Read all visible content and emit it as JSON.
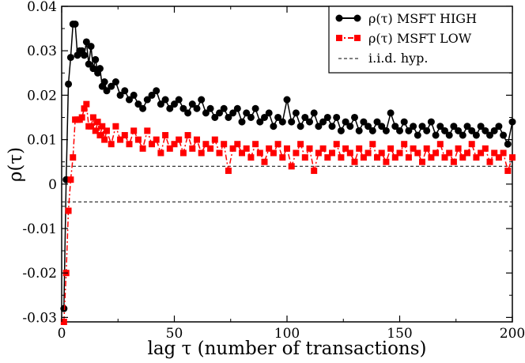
{
  "chart_data": {
    "type": "line",
    "xlabel": "lag τ (number of transactions)",
    "ylabel": "ρ(τ)",
    "xlim": [
      0,
      200
    ],
    "ylim": [
      -0.031,
      0.04
    ],
    "xticks": [
      0,
      50,
      100,
      150,
      200
    ],
    "xtick_labels": [
      "0",
      "50",
      "100",
      "150",
      "200"
    ],
    "yticks": [
      -0.03,
      -0.02,
      -0.01,
      0,
      0.01,
      0.02,
      0.03,
      0.04
    ],
    "ytick_labels": [
      "-0.03",
      "-0.02",
      "-0.01",
      "0",
      "0.01",
      "0.02",
      "0.03",
      "0.04"
    ],
    "legend_position": "top-right",
    "iid_band": [
      -0.004,
      0.004
    ],
    "series": [
      {
        "name": "ρ(τ) MSFT HIGH",
        "color": "#000000",
        "marker": "circle",
        "x": [
          1,
          2,
          3,
          4,
          5,
          6,
          7,
          8,
          9,
          10,
          11,
          12,
          13,
          14,
          15,
          16,
          17,
          18,
          19,
          20,
          22,
          24,
          26,
          28,
          30,
          32,
          34,
          36,
          38,
          40,
          42,
          44,
          46,
          48,
          50,
          52,
          54,
          56,
          58,
          60,
          62,
          64,
          66,
          68,
          70,
          72,
          74,
          76,
          78,
          80,
          82,
          84,
          86,
          88,
          90,
          92,
          94,
          96,
          98,
          100,
          102,
          104,
          106,
          108,
          110,
          112,
          114,
          116,
          118,
          120,
          122,
          124,
          126,
          128,
          130,
          132,
          134,
          136,
          138,
          140,
          142,
          144,
          146,
          148,
          150,
          152,
          154,
          156,
          158,
          160,
          162,
          164,
          166,
          168,
          170,
          172,
          174,
          176,
          178,
          180,
          182,
          184,
          186,
          188,
          190,
          192,
          194,
          196,
          198,
          200
        ],
        "y": [
          -0.028,
          0.001,
          0.0225,
          0.0285,
          0.036,
          0.036,
          0.029,
          0.03,
          0.03,
          0.029,
          0.032,
          0.027,
          0.031,
          0.026,
          0.028,
          0.025,
          0.026,
          0.022,
          0.023,
          0.021,
          0.022,
          0.023,
          0.02,
          0.021,
          0.019,
          0.02,
          0.018,
          0.017,
          0.019,
          0.02,
          0.021,
          0.018,
          0.019,
          0.017,
          0.018,
          0.019,
          0.017,
          0.016,
          0.018,
          0.017,
          0.019,
          0.016,
          0.017,
          0.015,
          0.016,
          0.017,
          0.015,
          0.016,
          0.017,
          0.014,
          0.016,
          0.015,
          0.017,
          0.014,
          0.015,
          0.016,
          0.013,
          0.015,
          0.014,
          0.019,
          0.014,
          0.016,
          0.013,
          0.015,
          0.014,
          0.016,
          0.013,
          0.014,
          0.015,
          0.013,
          0.015,
          0.012,
          0.014,
          0.013,
          0.015,
          0.012,
          0.014,
          0.013,
          0.012,
          0.014,
          0.013,
          0.012,
          0.016,
          0.013,
          0.012,
          0.014,
          0.012,
          0.013,
          0.011,
          0.013,
          0.012,
          0.014,
          0.011,
          0.013,
          0.012,
          0.011,
          0.013,
          0.012,
          0.011,
          0.013,
          0.012,
          0.011,
          0.013,
          0.012,
          0.011,
          0.012,
          0.013,
          0.011,
          0.009,
          0.014
        ]
      },
      {
        "name": "ρ(τ) MSFT LOW",
        "color": "#ff0000",
        "marker": "square",
        "x": [
          1,
          2,
          3,
          4,
          5,
          6,
          7,
          8,
          9,
          10,
          11,
          12,
          13,
          14,
          15,
          16,
          17,
          18,
          19,
          20,
          22,
          24,
          26,
          28,
          30,
          32,
          34,
          36,
          38,
          40,
          42,
          44,
          46,
          48,
          50,
          52,
          54,
          56,
          58,
          60,
          62,
          64,
          66,
          68,
          70,
          72,
          74,
          76,
          78,
          80,
          82,
          84,
          86,
          88,
          90,
          92,
          94,
          96,
          98,
          100,
          102,
          104,
          106,
          108,
          110,
          112,
          114,
          116,
          118,
          120,
          122,
          124,
          126,
          128,
          130,
          132,
          134,
          136,
          138,
          140,
          142,
          144,
          146,
          148,
          150,
          152,
          154,
          156,
          158,
          160,
          162,
          164,
          166,
          168,
          170,
          172,
          174,
          176,
          178,
          180,
          182,
          184,
          186,
          188,
          190,
          192,
          194,
          196,
          198,
          200
        ],
        "y": [
          -0.031,
          -0.02,
          -0.006,
          0.001,
          0.006,
          0.0145,
          0.0145,
          0.0145,
          0.015,
          0.017,
          0.018,
          0.013,
          0.013,
          0.015,
          0.012,
          0.014,
          0.011,
          0.013,
          0.01,
          0.012,
          0.009,
          0.013,
          0.01,
          0.011,
          0.009,
          0.012,
          0.01,
          0.008,
          0.012,
          0.009,
          0.01,
          0.007,
          0.011,
          0.008,
          0.009,
          0.01,
          0.007,
          0.011,
          0.008,
          0.01,
          0.007,
          0.009,
          0.008,
          0.01,
          0.007,
          0.009,
          0.003,
          0.008,
          0.009,
          0.007,
          0.008,
          0.006,
          0.009,
          0.007,
          0.005,
          0.008,
          0.007,
          0.009,
          0.006,
          0.008,
          0.004,
          0.007,
          0.009,
          0.006,
          0.008,
          0.003,
          0.007,
          0.008,
          0.006,
          0.007,
          0.009,
          0.006,
          0.008,
          0.007,
          0.005,
          0.008,
          0.006,
          0.007,
          0.009,
          0.006,
          0.007,
          0.005,
          0.008,
          0.006,
          0.007,
          0.009,
          0.006,
          0.008,
          0.007,
          0.005,
          0.008,
          0.006,
          0.007,
          0.009,
          0.006,
          0.007,
          0.005,
          0.008,
          0.006,
          0.007,
          0.009,
          0.006,
          0.007,
          0.008,
          0.005,
          0.007,
          0.006,
          0.007,
          0.003,
          0.006
        ]
      }
    ],
    "legend": [
      {
        "label": "ρ(τ) MSFT HIGH",
        "style": "line-circle"
      },
      {
        "label": "ρ(τ) MSFT LOW",
        "style": "dashdot-square"
      },
      {
        "label": "i.i.d. hyp.",
        "style": "dashed"
      }
    ]
  }
}
